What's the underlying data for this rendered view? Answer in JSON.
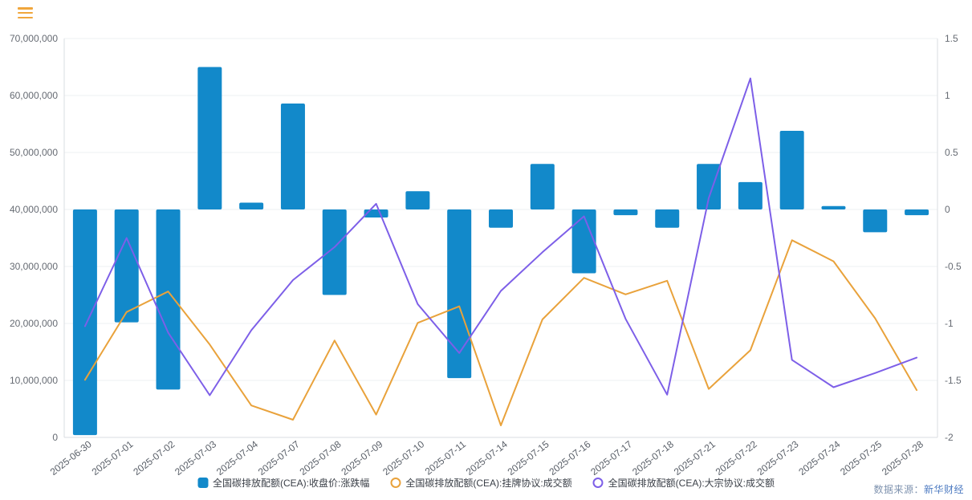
{
  "header": {
    "menu_icon_color": "#f0a63c"
  },
  "footer": {
    "source_label": "数据来源：",
    "source_name": "新华财经"
  },
  "chart_data": {
    "type": "bar",
    "subtype": "combo-bar-line-dual-axis",
    "title": "",
    "categories": [
      "2025-06-30",
      "2025-07-01",
      "2025-07-02",
      "2025-07-03",
      "2025-07-04",
      "2025-07-07",
      "2025-07-08",
      "2025-07-09",
      "2025-07-10",
      "2025-07-11",
      "2025-07-14",
      "2025-07-15",
      "2025-07-16",
      "2025-07-17",
      "2025-07-18",
      "2025-07-21",
      "2025-07-22",
      "2025-07-23",
      "2025-07-24",
      "2025-07-25",
      "2025-07-28"
    ],
    "series": [
      {
        "name": "全国碳排放配额(CEA):收盘价:涨跌幅",
        "type": "bar",
        "y_axis": "right",
        "color": "#1289ca",
        "values": [
          -1.98,
          -0.99,
          -1.58,
          1.25,
          0.06,
          0.93,
          -0.75,
          -0.07,
          0.16,
          -1.48,
          -0.16,
          0.4,
          -0.56,
          -0.05,
          -0.16,
          0.4,
          0.24,
          0.69,
          0.03,
          -0.2,
          -0.05
        ]
      },
      {
        "name": "全国碳排放配额(CEA):挂牌协议:成交额",
        "type": "line",
        "y_axis": "left",
        "color": "#e9a23b",
        "values": [
          10100000,
          22000000,
          25600000,
          16300000,
          5600000,
          3100000,
          17000000,
          4000000,
          20100000,
          23000000,
          2100000,
          20700000,
          28000000,
          25100000,
          27500000,
          8500000,
          15300000,
          34600000,
          30900000,
          20900000,
          8300000
        ]
      },
      {
        "name": "全国碳排放配额(CEA):大宗协议:成交额",
        "type": "line",
        "y_axis": "left",
        "color": "#7d5fe8",
        "values": [
          19500000,
          35000000,
          18400000,
          7400000,
          18800000,
          27600000,
          33400000,
          41000000,
          23400000,
          14800000,
          25700000,
          32500000,
          38800000,
          20800000,
          7500000,
          42000000,
          63000000,
          13600000,
          8800000,
          11300000,
          14000000
        ]
      }
    ],
    "left_axis": {
      "min": 0,
      "max": 70000000,
      "tick_labels": [
        "0",
        "10,000,000",
        "20,000,000",
        "30,000,000",
        "40,000,000",
        "50,000,000",
        "60,000,000",
        "70,000,000"
      ]
    },
    "right_axis": {
      "min": -2,
      "max": 1.5,
      "tick_labels": [
        "-2",
        "-1.5",
        "-1",
        "-0.5",
        "0",
        "0.5",
        "1",
        "1.5"
      ]
    },
    "grid": true,
    "legend_position": "bottom",
    "x_label_rotation_deg": -38
  }
}
